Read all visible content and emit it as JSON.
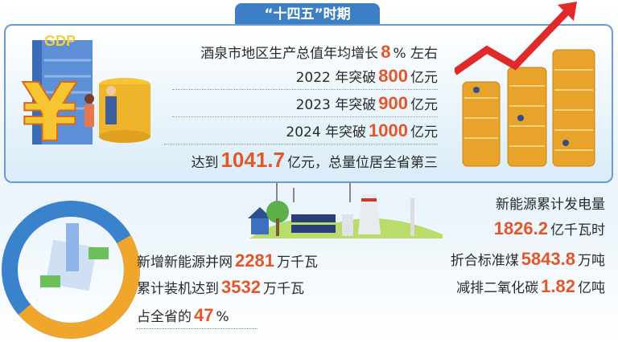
{
  "title": "“十四五”时期",
  "gdp": {
    "logo_text": "GDP",
    "lines": [
      {
        "pre": "酒泉市地区生产总值年均增长",
        "num": "8",
        "post": "% 左右"
      },
      {
        "pre": "2022 年突破",
        "num": "800",
        "post": "亿元"
      },
      {
        "pre": "2023 年突破",
        "num": "900",
        "post": "亿元"
      },
      {
        "pre": "2024 年突破",
        "num": "1000",
        "post": "亿元"
      },
      {
        "pre": "达到",
        "num": "1041.7",
        "post": "亿元，总量位居全省第三"
      }
    ]
  },
  "energy": {
    "share_percent": 47,
    "left": [
      {
        "pre": "新增新能源并网",
        "num": "2281",
        "post": "万千瓦"
      },
      {
        "pre": "累计装机达到",
        "num": "3532",
        "post": "万千瓦"
      },
      {
        "pre": "占全省的",
        "num": "47",
        "post": "%"
      }
    ],
    "right": [
      {
        "pre": "新能源累计发电量",
        "num": "",
        "post": ""
      },
      {
        "pre": "",
        "num": "1826.2",
        "post": "亿千瓦时"
      },
      {
        "pre": "折合标准煤",
        "num": "5843.8",
        "post": "万吨"
      },
      {
        "pre": "减排二氧化碳",
        "num": "1.82",
        "post": "亿吨"
      }
    ]
  },
  "colors": {
    "accent": "#e2572a",
    "blue": "#3d7fc4",
    "orange": "#f0a62a"
  }
}
